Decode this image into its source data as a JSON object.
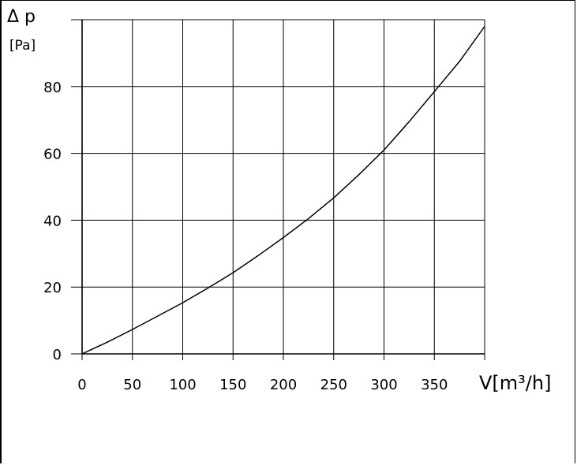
{
  "chart_data": {
    "type": "line",
    "title": "",
    "ylabel_symbol": "Δ p",
    "ylabel_unit": "[Pa]",
    "xlabel": "V[m³/h]",
    "xlim": [
      0,
      400
    ],
    "ylim": [
      0,
      100
    ],
    "grid": true,
    "x_ticks": [
      0,
      50,
      100,
      150,
      200,
      250,
      300,
      350
    ],
    "y_ticks": [
      0,
      20,
      40,
      60,
      80
    ],
    "x_tick_labels": [
      "0",
      "50",
      "100",
      "150",
      "200",
      "250",
      "300",
      "350"
    ],
    "y_tick_labels": [
      "0",
      "20",
      "40",
      "60",
      "80"
    ],
    "series": [
      {
        "x": [
          0,
          25,
          50,
          75,
          100,
          125,
          150,
          175,
          200,
          225,
          250,
          275,
          300,
          325,
          350,
          375,
          400
        ],
        "y": [
          0,
          3.5,
          7.3,
          11.3,
          15.3,
          19.7,
          24.3,
          29.4,
          34.8,
          40.5,
          46.7,
          53.6,
          61.0,
          69.5,
          78.5,
          87.5,
          98
        ]
      }
    ]
  }
}
